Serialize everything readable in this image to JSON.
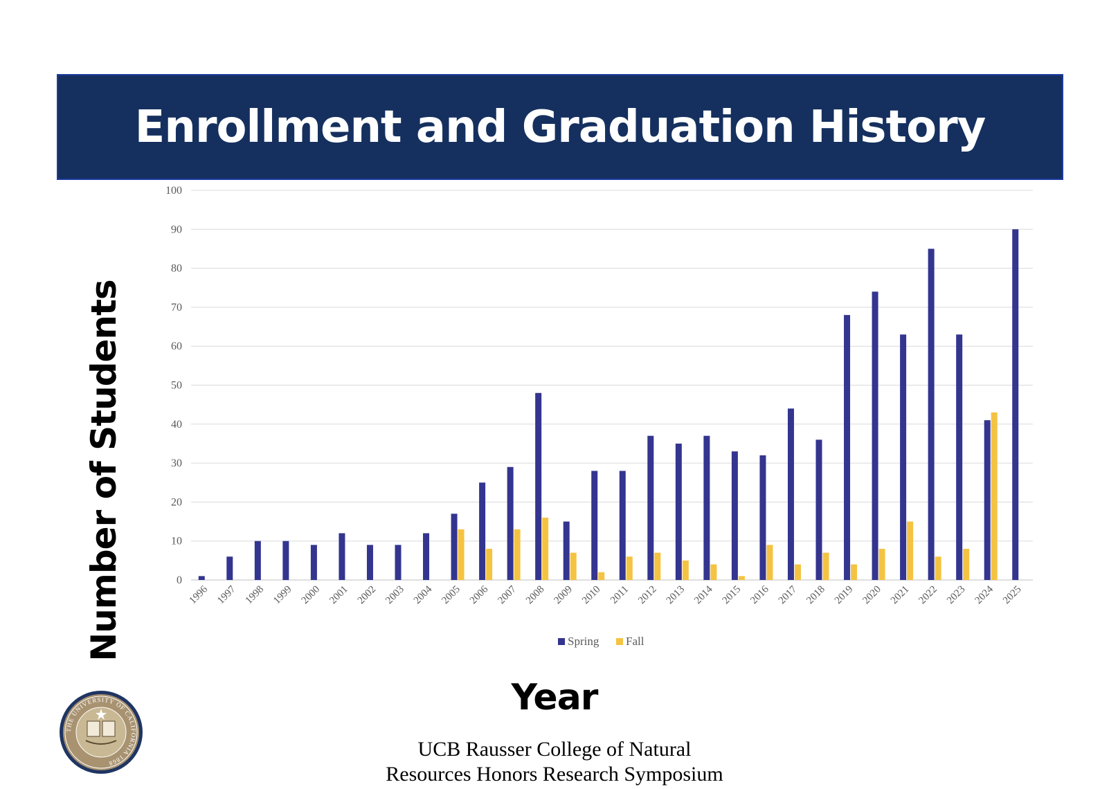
{
  "header": {
    "title": "Enrollment and Graduation History"
  },
  "axes": {
    "ylabel": "Number of Students",
    "xlabel": "Year"
  },
  "footer": {
    "line1": "UCB Rausser College of Natural",
    "line2": "Resources Honors Research Symposium"
  },
  "seal": {
    "icon": "university-of-california-seal-icon",
    "text": "THE UNIVERSITY OF CALIFORNIA 1868"
  },
  "colors": {
    "banner": "#15305f",
    "spring": "#33358f",
    "fall": "#f5c342",
    "grid": "#d9d9d9"
  },
  "chart_data": {
    "type": "bar",
    "title": "Enrollment and Graduation History",
    "xlabel": "Year",
    "ylabel": "Number of Students",
    "ylim": [
      0,
      100
    ],
    "yticks": [
      0,
      10,
      20,
      30,
      40,
      50,
      60,
      70,
      80,
      90,
      100
    ],
    "grid": true,
    "legend": "bottom",
    "categories": [
      "1996",
      "1997",
      "1998",
      "1999",
      "2000",
      "2001",
      "2002",
      "2003",
      "2004",
      "2005",
      "2006",
      "2007",
      "2008",
      "2009",
      "2010",
      "2011",
      "2012",
      "2013",
      "2014",
      "2015",
      "2016",
      "2017",
      "2018",
      "2019",
      "2020",
      "2021",
      "2022",
      "2023",
      "2024",
      "2025"
    ],
    "series": [
      {
        "name": "Spring",
        "color": "#33358f",
        "values": [
          1,
          6,
          10,
          10,
          9,
          12,
          9,
          9,
          12,
          17,
          25,
          29,
          48,
          15,
          28,
          28,
          37,
          35,
          37,
          33,
          32,
          44,
          36,
          68,
          74,
          63,
          85,
          63,
          41,
          90
        ]
      },
      {
        "name": "Fall",
        "color": "#f5c342",
        "values": [
          0,
          0,
          0,
          0,
          0,
          0,
          0,
          0,
          0,
          13,
          8,
          13,
          16,
          7,
          2,
          6,
          7,
          5,
          4,
          1,
          9,
          4,
          7,
          4,
          8,
          15,
          6,
          8,
          43,
          0
        ]
      }
    ]
  }
}
